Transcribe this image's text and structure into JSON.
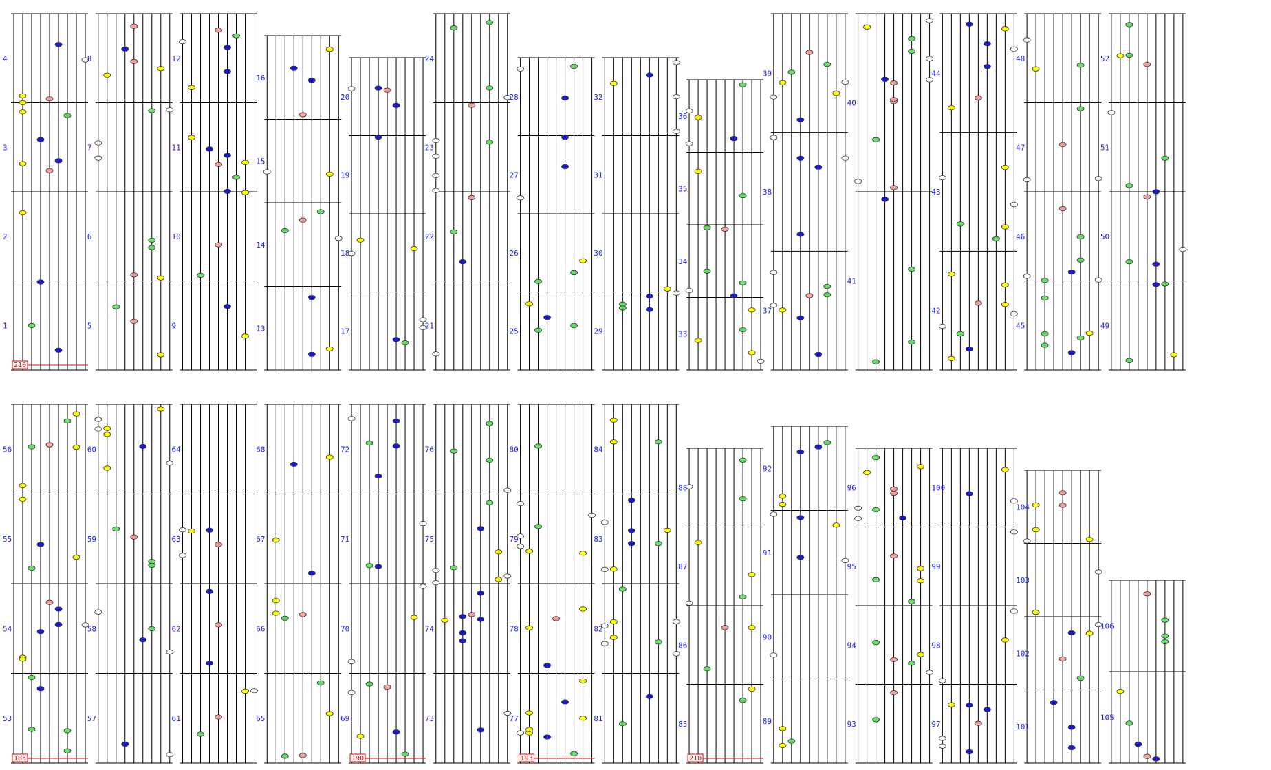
{
  "chart_data": {
    "type": "other",
    "title": "",
    "notes": "Music-game chart (rhythm notation) drawn as columns of 9 vertical lanes with measure bars.",
    "colors": {
      "lane": "#000000",
      "measure": "#000000",
      "label": "#1a1aff",
      "badge": "#e60000",
      "white": "#ffffff",
      "yellow": "#ffff00",
      "green": "#66dd66",
      "blue": "#1a1acc",
      "pink": "#f4a0a0",
      "cyan": "#99ddee"
    },
    "bpm_badges": [
      {
        "column": 1,
        "text": "210"
      },
      {
        "column": 15,
        "text": "185"
      },
      {
        "column": 19,
        "text": "190"
      },
      {
        "column": 21,
        "text": "193"
      },
      {
        "column": 23,
        "text": "210"
      }
    ],
    "columns": [
      {
        "id": 1,
        "measures": [
          "1",
          "2",
          "3",
          "4"
        ]
      },
      {
        "id": 2,
        "measures": [
          "5",
          "6",
          "7",
          "8"
        ]
      },
      {
        "id": 3,
        "measures": [
          "9",
          "10",
          "11",
          "12"
        ]
      },
      {
        "id": 4,
        "measures": [
          "13",
          "14",
          "15",
          "16"
        ]
      },
      {
        "id": 5,
        "measures": [
          "17",
          "18",
          "19",
          "20"
        ]
      },
      {
        "id": 6,
        "measures": [
          "21",
          "22",
          "23",
          "24"
        ]
      },
      {
        "id": 7,
        "measures": [
          "25",
          "26",
          "27",
          "28"
        ]
      },
      {
        "id": 8,
        "measures": [
          "29",
          "30",
          "31",
          "32"
        ]
      },
      {
        "id": 9,
        "measures": [
          "33",
          "34",
          "35",
          "36"
        ]
      },
      {
        "id": 10,
        "measures": [
          "37",
          "38",
          "39"
        ]
      },
      {
        "id": 11,
        "measures": [
          "41",
          "40"
        ]
      },
      {
        "id": 12,
        "measures": [
          "42",
          "43",
          "44"
        ]
      },
      {
        "id": 13,
        "measures": [
          "45",
          "46",
          "47",
          "48"
        ]
      },
      {
        "id": 14,
        "measures": [
          "49",
          "50",
          "51",
          "52"
        ]
      },
      {
        "id": 15,
        "measures": [
          "53",
          "54",
          "55",
          "56"
        ]
      },
      {
        "id": 16,
        "measures": [
          "57",
          "58",
          "59",
          "60"
        ]
      },
      {
        "id": 17,
        "measures": [
          "61",
          "62",
          "63",
          "64"
        ]
      },
      {
        "id": 18,
        "measures": [
          "65",
          "66",
          "67",
          "68"
        ]
      },
      {
        "id": 19,
        "measures": [
          "69",
          "70",
          "71",
          "72"
        ]
      },
      {
        "id": 20,
        "measures": [
          "73",
          "74",
          "75",
          "76"
        ]
      },
      {
        "id": 21,
        "measures": [
          "77",
          "78",
          "79",
          "80"
        ]
      },
      {
        "id": 22,
        "measures": [
          "81",
          "82",
          "83",
          "84"
        ]
      },
      {
        "id": 23,
        "measures": [
          "85",
          "86",
          "87",
          "88"
        ]
      },
      {
        "id": 24,
        "measures": [
          "89",
          "90",
          "91",
          "92"
        ]
      },
      {
        "id": 25,
        "measures": [
          "93",
          "94",
          "95",
          "96"
        ]
      },
      {
        "id": 26,
        "measures": [
          "97",
          "98",
          "99",
          "100"
        ]
      },
      {
        "id": 27,
        "measures": [
          "101",
          "102",
          "103",
          "104"
        ]
      },
      {
        "id": 28,
        "measures": [
          "105",
          "106"
        ]
      }
    ]
  }
}
